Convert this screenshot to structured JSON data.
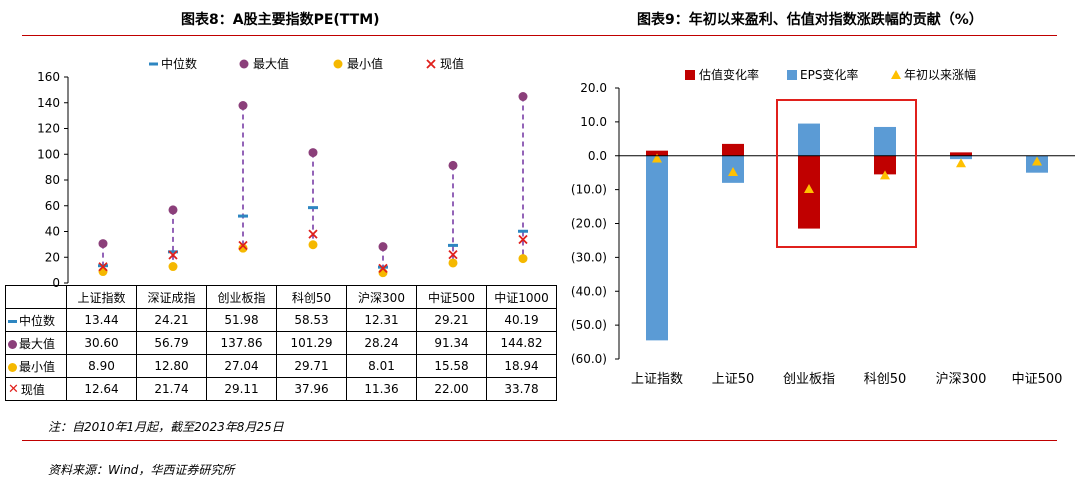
{
  "left_title": "图表8：A股主要指数PE(TTM)",
  "right_title": "图表9：年初以来盈利、估值对指数涨跌幅的贡献（%）",
  "note": "注：自2010年1月起，截至2023年8月25日",
  "source": "资料来源：Wind，华西证券研究所",
  "colors": {
    "accent": "#c00000",
    "median": "#2e86c1",
    "max": "#8b3f7a",
    "min": "#f5b800",
    "current": "#e0201c",
    "valuation": "#c00000",
    "eps": "#5b9bd5",
    "ytd": "#ffc000"
  },
  "chart_data": [
    {
      "type": "scatter",
      "title": "A股主要指数PE(TTM)",
      "categories": [
        "上证指数",
        "深证成指",
        "创业板指",
        "科创50",
        "沪深300",
        "中证500",
        "中证1000"
      ],
      "ylim": [
        0,
        160
      ],
      "yticks": [
        0,
        20,
        40,
        60,
        80,
        100,
        120,
        140,
        160
      ],
      "series": [
        {
          "name": "中位数",
          "values": [
            13.44,
            24.21,
            51.98,
            58.53,
            12.31,
            29.21,
            40.19
          ]
        },
        {
          "name": "最大值",
          "values": [
            30.6,
            56.79,
            137.86,
            101.29,
            28.24,
            91.34,
            144.82
          ]
        },
        {
          "name": "最小值",
          "values": [
            8.9,
            12.8,
            27.04,
            29.71,
            8.01,
            15.58,
            18.94
          ]
        },
        {
          "name": "现值",
          "values": [
            12.64,
            21.74,
            29.11,
            37.96,
            11.36,
            22.0,
            33.78
          ]
        }
      ],
      "table": {
        "rows": [
          {
            "label": "中位数",
            "cells": [
              "13.44",
              "24.21",
              "51.98",
              "58.53",
              "12.31",
              "29.21",
              "40.19"
            ]
          },
          {
            "label": "最大值",
            "cells": [
              "30.60",
              "56.79",
              "137.86",
              "101.29",
              "28.24",
              "91.34",
              "144.82"
            ]
          },
          {
            "label": "最小值",
            "cells": [
              "8.90",
              "12.80",
              "27.04",
              "29.71",
              "8.01",
              "15.58",
              "18.94"
            ]
          },
          {
            "label": "现值",
            "cells": [
              "12.64",
              "21.74",
              "29.11",
              "37.96",
              "11.36",
              "22.00",
              "33.78"
            ]
          }
        ]
      }
    },
    {
      "type": "bar",
      "title": "年初以来盈利、估值对指数涨跌幅的贡献（%）",
      "categories": [
        "上证指数",
        "上证50",
        "创业板指",
        "科创50",
        "沪深300",
        "中证500"
      ],
      "ylim": [
        -60,
        20
      ],
      "yticks": [
        20,
        10,
        0,
        -10,
        -20,
        -30,
        -40,
        -50,
        -60
      ],
      "ytick_labels": [
        "20.0",
        "10.0",
        "0.0",
        "(10.0)",
        "(20.0)",
        "(30.0)",
        "(40.0)",
        "(50.0)",
        "(60.0)"
      ],
      "series": [
        {
          "name": "估值变化率",
          "values": [
            1.5,
            3.5,
            -21.5,
            -5.5,
            1.0,
            -2.0
          ]
        },
        {
          "name": "EPS变化率",
          "values": [
            -54.5,
            -8.0,
            9.5,
            8.5,
            -1.0,
            -5.0
          ]
        },
        {
          "name": "年初以来涨幅",
          "values": [
            -0.8,
            -4.8,
            -9.8,
            -5.8,
            -2.2,
            -1.7
          ]
        }
      ],
      "annotation": "red box highlighting 创业板指 and 科创50"
    }
  ]
}
